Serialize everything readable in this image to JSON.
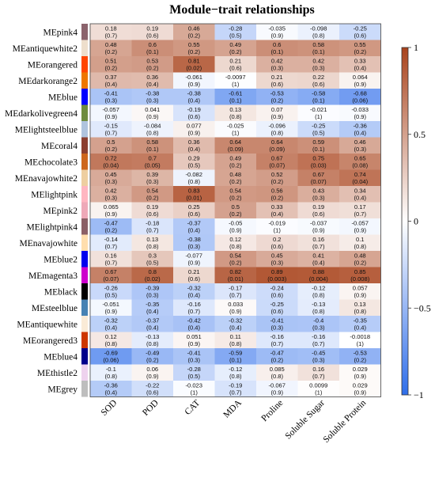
{
  "chart_data": {
    "type": "heatmap",
    "title": "Module−trait relationships",
    "columns": [
      "SOD",
      "POD",
      "CAT",
      "MDA",
      "Proline",
      "Soluble Sugar",
      "Soluble Protein"
    ],
    "rows": [
      {
        "name": "MEpink4",
        "color": "#8B636C",
        "values": [
          0.18,
          0.19,
          0.46,
          -0.28,
          -0.035,
          -0.098,
          -0.25
        ],
        "pvalues": [
          "0.7",
          "0.6",
          "0.2",
          "0.5",
          "0.9",
          "0.8",
          "0.6"
        ]
      },
      {
        "name": "MEantiquewhite2",
        "color": "#EEDFCC",
        "values": [
          0.48,
          0.6,
          0.55,
          0.49,
          0.6,
          0.58,
          0.55
        ],
        "pvalues": [
          "0.2",
          "0.1",
          "0.2",
          "0.2",
          "0.1",
          "0.1",
          "0.2"
        ]
      },
      {
        "name": "MEorangered",
        "color": "#FF4500",
        "values": [
          0.51,
          0.53,
          0.81,
          0.21,
          0.42,
          0.42,
          0.33
        ],
        "pvalues": [
          "0.2",
          "0.2",
          "0.02",
          "0.6",
          "0.3",
          "0.3",
          "0.4"
        ]
      },
      {
        "name": "MEdarkorange2",
        "color": "#EE7600",
        "values": [
          0.37,
          0.36,
          -0.061,
          -0.0097,
          0.21,
          0.22,
          0.064
        ],
        "pvalues": [
          "0.4",
          "0.4",
          "0.9",
          "1",
          "0.6",
          "0.6",
          "0.9"
        ]
      },
      {
        "name": "MEblue",
        "color": "#0000FF",
        "values": [
          -0.41,
          -0.38,
          -0.38,
          -0.61,
          -0.53,
          -0.58,
          -0.68
        ],
        "pvalues": [
          "0.3",
          "0.3",
          "0.4",
          "0.1",
          "0.2",
          "0.1",
          "0.06"
        ]
      },
      {
        "name": "MEdarkolivegreen4",
        "color": "#6E8B3D",
        "values": [
          -0.057,
          0.041,
          -0.19,
          0.13,
          0.07,
          -0.021,
          -0.033
        ],
        "pvalues": [
          "0.9",
          "0.9",
          "0.6",
          "0.8",
          "0.9",
          "1",
          "0.9"
        ]
      },
      {
        "name": "MElightsteelblue",
        "color": "#B0C4DE",
        "values": [
          -0.15,
          -0.084,
          0.077,
          -0.025,
          -0.096,
          -0.25,
          -0.36
        ],
        "pvalues": [
          "0.7",
          "0.8",
          "0.9",
          "1",
          "0.8",
          "0.5",
          "0.4"
        ]
      },
      {
        "name": "MEcoral4",
        "color": "#8B3E2F",
        "values": [
          0.5,
          0.58,
          0.36,
          0.64,
          0.64,
          0.59,
          0.46
        ],
        "pvalues": [
          "0.2",
          "0.1",
          "0.4",
          "0.09",
          "0.09",
          "0.1",
          "0.3"
        ]
      },
      {
        "name": "MEchocolate3",
        "color": "#CD661D",
        "values": [
          0.72,
          0.7,
          0.29,
          0.49,
          0.67,
          0.75,
          0.65
        ],
        "pvalues": [
          "0.04",
          "0.05",
          "0.5",
          "0.2",
          "0.07",
          "0.03",
          "0.08"
        ]
      },
      {
        "name": "MEnavajowhite2",
        "color": "#EECFA1",
        "values": [
          0.45,
          0.39,
          -0.082,
          0.48,
          0.52,
          0.67,
          0.74
        ],
        "pvalues": [
          "0.3",
          "0.3",
          "0.8",
          "0.2",
          "0.2",
          "0.07",
          "0.04"
        ]
      },
      {
        "name": "MElightpink",
        "color": "#FFB6C1",
        "values": [
          0.42,
          0.54,
          0.83,
          0.54,
          0.56,
          0.43,
          0.34
        ],
        "pvalues": [
          "0.3",
          "0.2",
          "0.01",
          "0.2",
          "0.2",
          "0.3",
          "0.4"
        ]
      },
      {
        "name": "MEpink2",
        "color": "#EEA9B8",
        "values": [
          0.065,
          0.19,
          0.25,
          0.5,
          0.33,
          0.19,
          0.17
        ],
        "pvalues": [
          "0.9",
          "0.6",
          "0.6",
          "0.2",
          "0.4",
          "0.6",
          "0.7"
        ]
      },
      {
        "name": "MElightpink4",
        "color": "#8B5F65",
        "values": [
          -0.47,
          -0.18,
          -0.37,
          -0.05,
          -0.019,
          -0.037,
          -0.057
        ],
        "pvalues": [
          "0.2",
          "0.7",
          "0.4",
          "0.9",
          "1",
          "0.9",
          "0.9"
        ]
      },
      {
        "name": "MEnavajowhite",
        "color": "#FFDEAD",
        "values": [
          -0.14,
          0.13,
          -0.38,
          0.12,
          0.2,
          0.16,
          0.1
        ],
        "pvalues": [
          "0.7",
          "0.8",
          "0.3",
          "0.8",
          "0.6",
          "0.7",
          "0.8"
        ]
      },
      {
        "name": "MEblue2",
        "color": "#0000EE",
        "values": [
          0.16,
          0.3,
          -0.077,
          0.54,
          0.45,
          0.41,
          0.48
        ],
        "pvalues": [
          "0.7",
          "0.5",
          "0.9",
          "0.2",
          "0.3",
          "0.4",
          "0.2"
        ]
      },
      {
        "name": "MEmagenta3",
        "color": "#CD00CD",
        "values": [
          0.67,
          0.8,
          0.21,
          0.82,
          0.89,
          0.88,
          0.85
        ],
        "pvalues": [
          "0.07",
          "0.02",
          "0.6",
          "0.01",
          "0.003",
          "0.004",
          "0.008"
        ]
      },
      {
        "name": "MEblack",
        "color": "#000000",
        "values": [
          -0.26,
          -0.39,
          -0.32,
          -0.17,
          -0.24,
          -0.12,
          0.057
        ],
        "pvalues": [
          "0.5",
          "0.3",
          "0.4",
          "0.7",
          "0.6",
          "0.8",
          "0.9"
        ]
      },
      {
        "name": "MEsteelblue",
        "color": "#4682B4",
        "values": [
          -0.051,
          -0.35,
          -0.16,
          0.033,
          -0.25,
          -0.13,
          0.13
        ],
        "pvalues": [
          "0.9",
          "0.4",
          "0.7",
          "0.9",
          "0.6",
          "0.8",
          "0.8"
        ]
      },
      {
        "name": "MEantiquewhite",
        "color": "#FAEBD7",
        "values": [
          -0.32,
          -0.37,
          -0.42,
          -0.32,
          -0.41,
          -0.4,
          -0.35
        ],
        "pvalues": [
          "0.4",
          "0.4",
          "0.4",
          "0.4",
          "0.3",
          "0.3",
          "0.4"
        ]
      },
      {
        "name": "MEorangered3",
        "color": "#CD3700",
        "values": [
          0.12,
          -0.13,
          0.051,
          0.11,
          -0.16,
          -0.16,
          -0.0018
        ],
        "pvalues": [
          "0.8",
          "0.8",
          "0.9",
          "0.8",
          "0.7",
          "0.7",
          "1"
        ]
      },
      {
        "name": "MEblue4",
        "color": "#00008B",
        "values": [
          -0.69,
          -0.49,
          -0.41,
          -0.59,
          -0.47,
          -0.45,
          -0.53
        ],
        "pvalues": [
          "0.06",
          "0.2",
          "0.3",
          "0.1",
          "0.2",
          "0.3",
          "0.2"
        ]
      },
      {
        "name": "MEthistle2",
        "color": "#EED2EE",
        "values": [
          -0.1,
          0.06,
          -0.28,
          -0.12,
          0.085,
          0.16,
          0.029
        ],
        "pvalues": [
          "0.8",
          "0.9",
          "0.5",
          "0.8",
          "0.8",
          "0.7",
          "0.9"
        ]
      },
      {
        "name": "MEgrey",
        "color": "#BEBEBE",
        "values": [
          -0.36,
          -0.22,
          -0.023,
          -0.19,
          -0.067,
          0.0099,
          0.029
        ],
        "pvalues": [
          "0.4",
          "0.6",
          "1",
          "0.7",
          "0.9",
          "1",
          "0.9"
        ]
      }
    ],
    "colorbar": {
      "min": -1,
      "max": 1,
      "ticks": [
        1,
        0.5,
        0,
        -0.5,
        -1
      ],
      "colors": {
        "low": "#2F6EEA",
        "mid": "#FFFFFF",
        "high": "#A9431C"
      }
    }
  }
}
